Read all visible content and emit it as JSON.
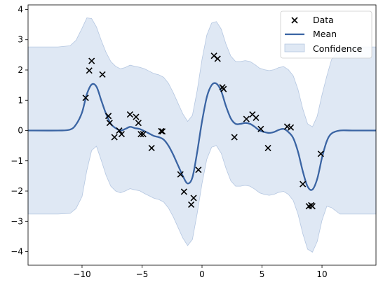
{
  "chart_data": {
    "type": "scatter",
    "title": "",
    "xlabel": "",
    "ylabel": "",
    "xlim": [
      -14.5,
      14.5
    ],
    "ylim": [
      -4.45,
      4.15
    ],
    "xticks": [
      -10,
      -5,
      0,
      5,
      10
    ],
    "xtick_labels": [
      "−10",
      "−5",
      "0",
      "5",
      "10"
    ],
    "yticks": [
      -4,
      -3,
      -2,
      -1,
      0,
      1,
      2,
      3,
      4
    ],
    "ytick_labels": [
      "−4",
      "−3",
      "−2",
      "−1",
      "0",
      "1",
      "2",
      "3",
      "4"
    ],
    "grid": false,
    "legend": {
      "position": "top-right",
      "entries": [
        {
          "label": "Data",
          "kind": "marker"
        },
        {
          "label": "Mean",
          "kind": "line"
        },
        {
          "label": "Confidence",
          "kind": "patch"
        }
      ]
    },
    "colors": {
      "data": "#000000",
      "mean": "#3a64a3",
      "confidence_fill": "#dfe8f4",
      "confidence_edge": "#b5c7e1"
    },
    "series": [
      {
        "name": "Data",
        "kind": "scatter",
        "x": [
          -9.7,
          -9.4,
          -9.2,
          -8.3,
          -7.8,
          -7.7,
          -7.3,
          -6.9,
          -6.7,
          -6.0,
          -5.5,
          -5.3,
          -5.1,
          -4.9,
          -4.2,
          -3.4,
          -3.3,
          -1.8,
          -1.5,
          -0.9,
          -0.7,
          -0.3,
          1.0,
          1.3,
          1.8,
          1.7,
          2.7,
          3.7,
          4.2,
          4.5,
          4.9,
          5.5,
          7.1,
          7.4,
          8.4,
          8.9,
          9.1,
          9.2,
          9.9
        ],
        "y": [
          1.08,
          1.98,
          2.3,
          1.85,
          0.48,
          0.25,
          -0.22,
          0.0,
          -0.12,
          0.53,
          0.45,
          0.25,
          -0.12,
          -0.12,
          -0.58,
          -0.02,
          -0.03,
          -1.45,
          -2.02,
          -2.45,
          -2.23,
          -1.3,
          2.47,
          2.37,
          1.37,
          1.43,
          -0.22,
          0.38,
          0.53,
          0.42,
          0.05,
          -0.58,
          0.13,
          0.1,
          -1.77,
          -2.5,
          -2.47,
          -2.5,
          -0.77
        ]
      },
      {
        "name": "Mean",
        "kind": "line",
        "x": [
          -14.5,
          -12.0,
          -11.0,
          -10.5,
          -10.0,
          -9.6,
          -9.2,
          -8.8,
          -8.4,
          -8.0,
          -7.6,
          -7.2,
          -6.8,
          -6.4,
          -6.0,
          -5.6,
          -5.2,
          -4.8,
          -4.4,
          -4.0,
          -3.6,
          -3.2,
          -2.8,
          -2.4,
          -2.0,
          -1.6,
          -1.2,
          -0.8,
          -0.4,
          0.0,
          0.4,
          0.8,
          1.2,
          1.6,
          2.0,
          2.4,
          2.8,
          3.2,
          3.6,
          4.0,
          4.4,
          4.8,
          5.2,
          5.6,
          6.0,
          6.4,
          6.8,
          7.2,
          7.6,
          8.0,
          8.4,
          8.8,
          9.2,
          9.6,
          10.0,
          10.4,
          10.8,
          11.5,
          12.5,
          14.5
        ],
        "y": [
          0.0,
          0.0,
          0.03,
          0.2,
          0.6,
          1.2,
          1.52,
          1.45,
          1.0,
          0.55,
          0.22,
          0.08,
          0.0,
          0.05,
          0.12,
          0.08,
          0.05,
          -0.02,
          -0.1,
          -0.18,
          -0.22,
          -0.3,
          -0.5,
          -0.8,
          -1.15,
          -1.5,
          -1.75,
          -1.55,
          -0.7,
          0.3,
          1.1,
          1.5,
          1.55,
          1.3,
          0.8,
          0.4,
          0.22,
          0.22,
          0.25,
          0.22,
          0.12,
          0.0,
          -0.05,
          -0.08,
          -0.05,
          0.02,
          0.05,
          -0.05,
          -0.25,
          -0.7,
          -1.35,
          -1.85,
          -1.95,
          -1.6,
          -0.9,
          -0.35,
          -0.1,
          0.0,
          0.0,
          0.0
        ]
      },
      {
        "name": "Confidence",
        "kind": "band",
        "x": [
          -14.5,
          -12.0,
          -11.0,
          -10.5,
          -10.0,
          -9.6,
          -9.2,
          -8.8,
          -8.4,
          -8.0,
          -7.6,
          -7.2,
          -6.8,
          -6.4,
          -6.0,
          -5.6,
          -5.2,
          -4.8,
          -4.4,
          -4.0,
          -3.6,
          -3.2,
          -2.8,
          -2.4,
          -2.0,
          -1.6,
          -1.2,
          -0.8,
          -0.4,
          0.0,
          0.4,
          0.8,
          1.2,
          1.6,
          2.0,
          2.4,
          2.8,
          3.2,
          3.6,
          4.0,
          4.4,
          4.8,
          5.2,
          5.6,
          6.0,
          6.4,
          6.8,
          7.2,
          7.6,
          8.0,
          8.4,
          8.8,
          9.2,
          9.6,
          10.0,
          10.4,
          10.8,
          11.5,
          12.5,
          14.5
        ],
        "upper": [
          2.76,
          2.76,
          2.8,
          2.98,
          3.38,
          3.72,
          3.7,
          3.42,
          2.98,
          2.58,
          2.28,
          2.12,
          2.04,
          2.08,
          2.16,
          2.12,
          2.09,
          2.04,
          1.96,
          1.88,
          1.84,
          1.76,
          1.56,
          1.25,
          0.9,
          0.55,
          0.3,
          0.5,
          1.33,
          2.35,
          3.15,
          3.55,
          3.6,
          3.35,
          2.85,
          2.46,
          2.28,
          2.28,
          2.31,
          2.28,
          2.18,
          2.06,
          2.01,
          1.98,
          2.01,
          2.08,
          2.11,
          2.01,
          1.81,
          1.36,
          0.71,
          0.22,
          0.12,
          0.47,
          1.17,
          1.8,
          2.35,
          2.7,
          2.76,
          2.76
        ],
        "lower": [
          -2.76,
          -2.76,
          -2.74,
          -2.58,
          -2.18,
          -1.32,
          -0.66,
          -0.52,
          -0.98,
          -1.48,
          -1.84,
          -2.0,
          -2.06,
          -2.0,
          -1.92,
          -1.96,
          -1.99,
          -2.08,
          -2.16,
          -2.24,
          -2.28,
          -2.36,
          -2.56,
          -2.85,
          -3.2,
          -3.55,
          -3.8,
          -3.6,
          -2.73,
          -1.75,
          -0.95,
          -0.55,
          -0.5,
          -0.75,
          -1.25,
          -1.66,
          -1.84,
          -1.84,
          -1.81,
          -1.84,
          -1.94,
          -2.06,
          -2.11,
          -2.14,
          -2.11,
          -2.04,
          -2.01,
          -2.11,
          -2.31,
          -2.76,
          -3.41,
          -3.92,
          -4.02,
          -3.67,
          -2.97,
          -2.5,
          -2.55,
          -2.76,
          -2.76,
          -2.76
        ]
      }
    ]
  }
}
